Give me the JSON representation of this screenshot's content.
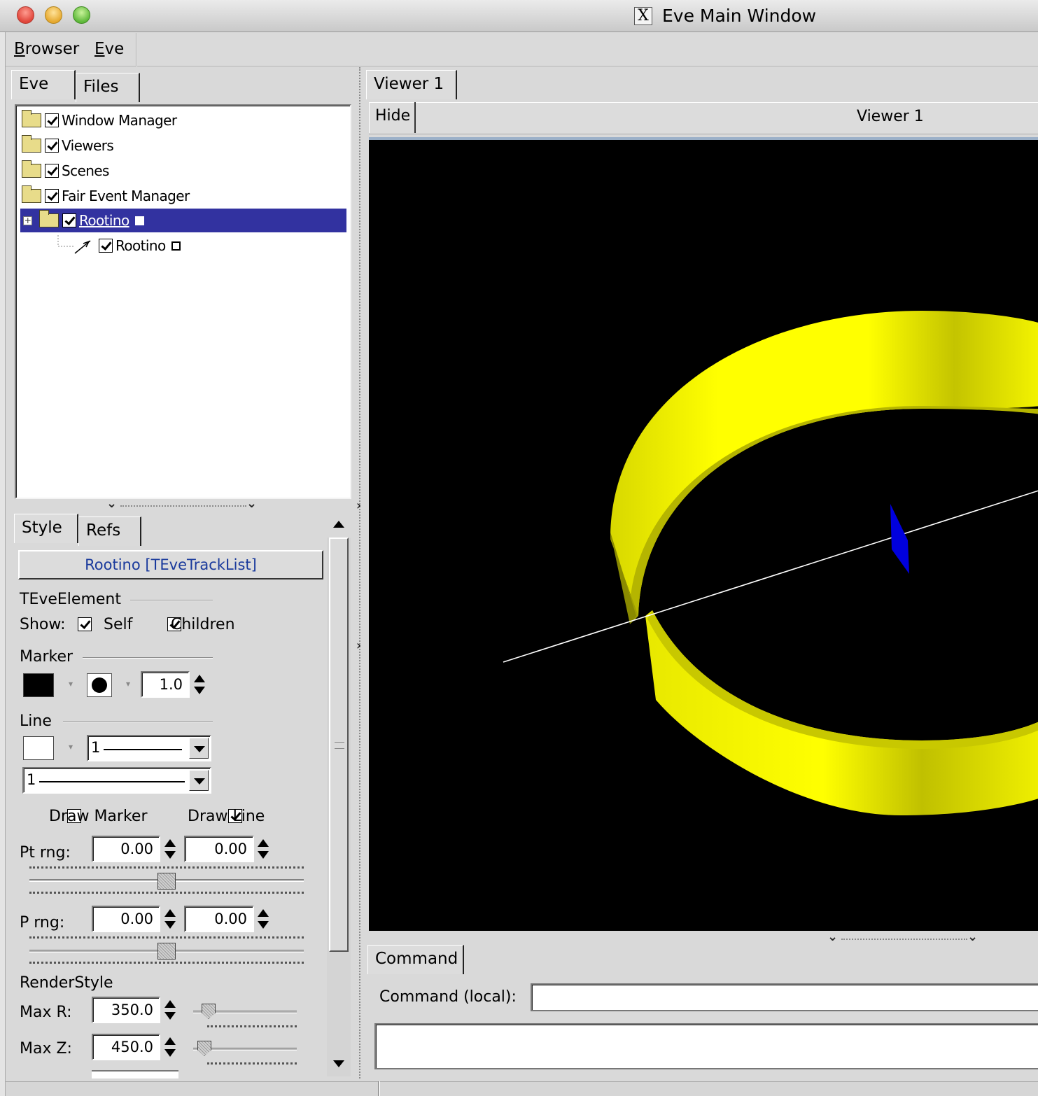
{
  "window": {
    "title": "Eve Main Window",
    "x_logo": "X"
  },
  "menubar": {
    "items": [
      {
        "mnemonic": "B",
        "rest": "rowser"
      },
      {
        "mnemonic": "E",
        "rest": "ve"
      }
    ]
  },
  "left_tabs": [
    "Eve",
    "Files"
  ],
  "tree": {
    "rows": [
      {
        "label": "Window Manager",
        "checked": true
      },
      {
        "label": "Viewers",
        "checked": true
      },
      {
        "label": "Scenes",
        "checked": true
      },
      {
        "label": "Fair Event Manager",
        "checked": true
      },
      {
        "label": "Rootino",
        "checked": true,
        "selected": true
      },
      {
        "label": "Rootino",
        "checked": true
      }
    ]
  },
  "editor_tabs": [
    "Style",
    "Refs"
  ],
  "editor": {
    "title_button": "Rootino [TEveTrackList]",
    "teve_element_label": "TEveElement",
    "show_label": "Show:",
    "self_label": "Self",
    "children_label": "Children",
    "self_checked": true,
    "children_checked": true,
    "marker_label": "Marker",
    "marker_color": "#000000",
    "marker_size": "1.0",
    "line_label": "Line",
    "line_color": "#ffffff",
    "line_width_value": "1",
    "line_style_value": "1",
    "draw_marker_label": "Draw Marker",
    "draw_marker_checked": false,
    "draw_line_label": "Draw Line",
    "draw_line_checked": true,
    "pt_rng_label": "Pt rng:",
    "pt_min": "0.00",
    "pt_max": "0.00",
    "p_rng_label": "P rng:",
    "p_min": "0.00",
    "p_max": "0.00",
    "render_style_label": "RenderStyle",
    "max_r_label": "Max R:",
    "max_r": "350.0",
    "max_z_label": "Max Z:",
    "max_z": "450.0"
  },
  "viewer": {
    "tab": "Viewer 1",
    "hide_label": "Hide",
    "title": "Viewer 1",
    "ring_color": "#ffff00",
    "marker_color": "#0000dd"
  },
  "command": {
    "tab": "Command",
    "label": "Command (local):",
    "value": ""
  }
}
